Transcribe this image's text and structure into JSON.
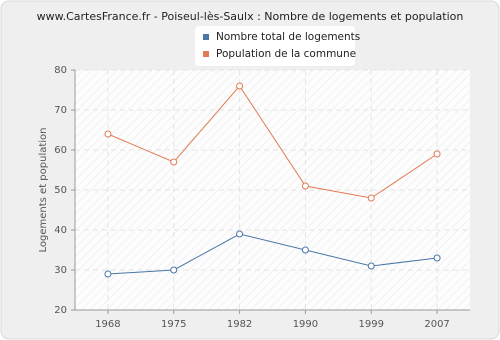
{
  "chart_data": {
    "type": "line",
    "title": "www.CartesFrance.fr - Poiseul-lès-Saulx : Nombre de logements et population",
    "y_label": "Logements et population",
    "categories": [
      "1968",
      "1975",
      "1982",
      "1990",
      "1999",
      "2007"
    ],
    "series": [
      {
        "name": "Nombre total de logements",
        "color": "#4a76a8",
        "values": [
          29,
          30,
          39,
          35,
          31,
          33
        ]
      },
      {
        "name": "Population de la commune",
        "color": "#e07b54",
        "values": [
          64,
          57,
          76,
          51,
          48,
          59
        ]
      }
    ],
    "ylim": [
      20,
      80
    ],
    "yticks": [
      20,
      30,
      40,
      50,
      60,
      70,
      80
    ],
    "grid": true,
    "legend": "top"
  }
}
